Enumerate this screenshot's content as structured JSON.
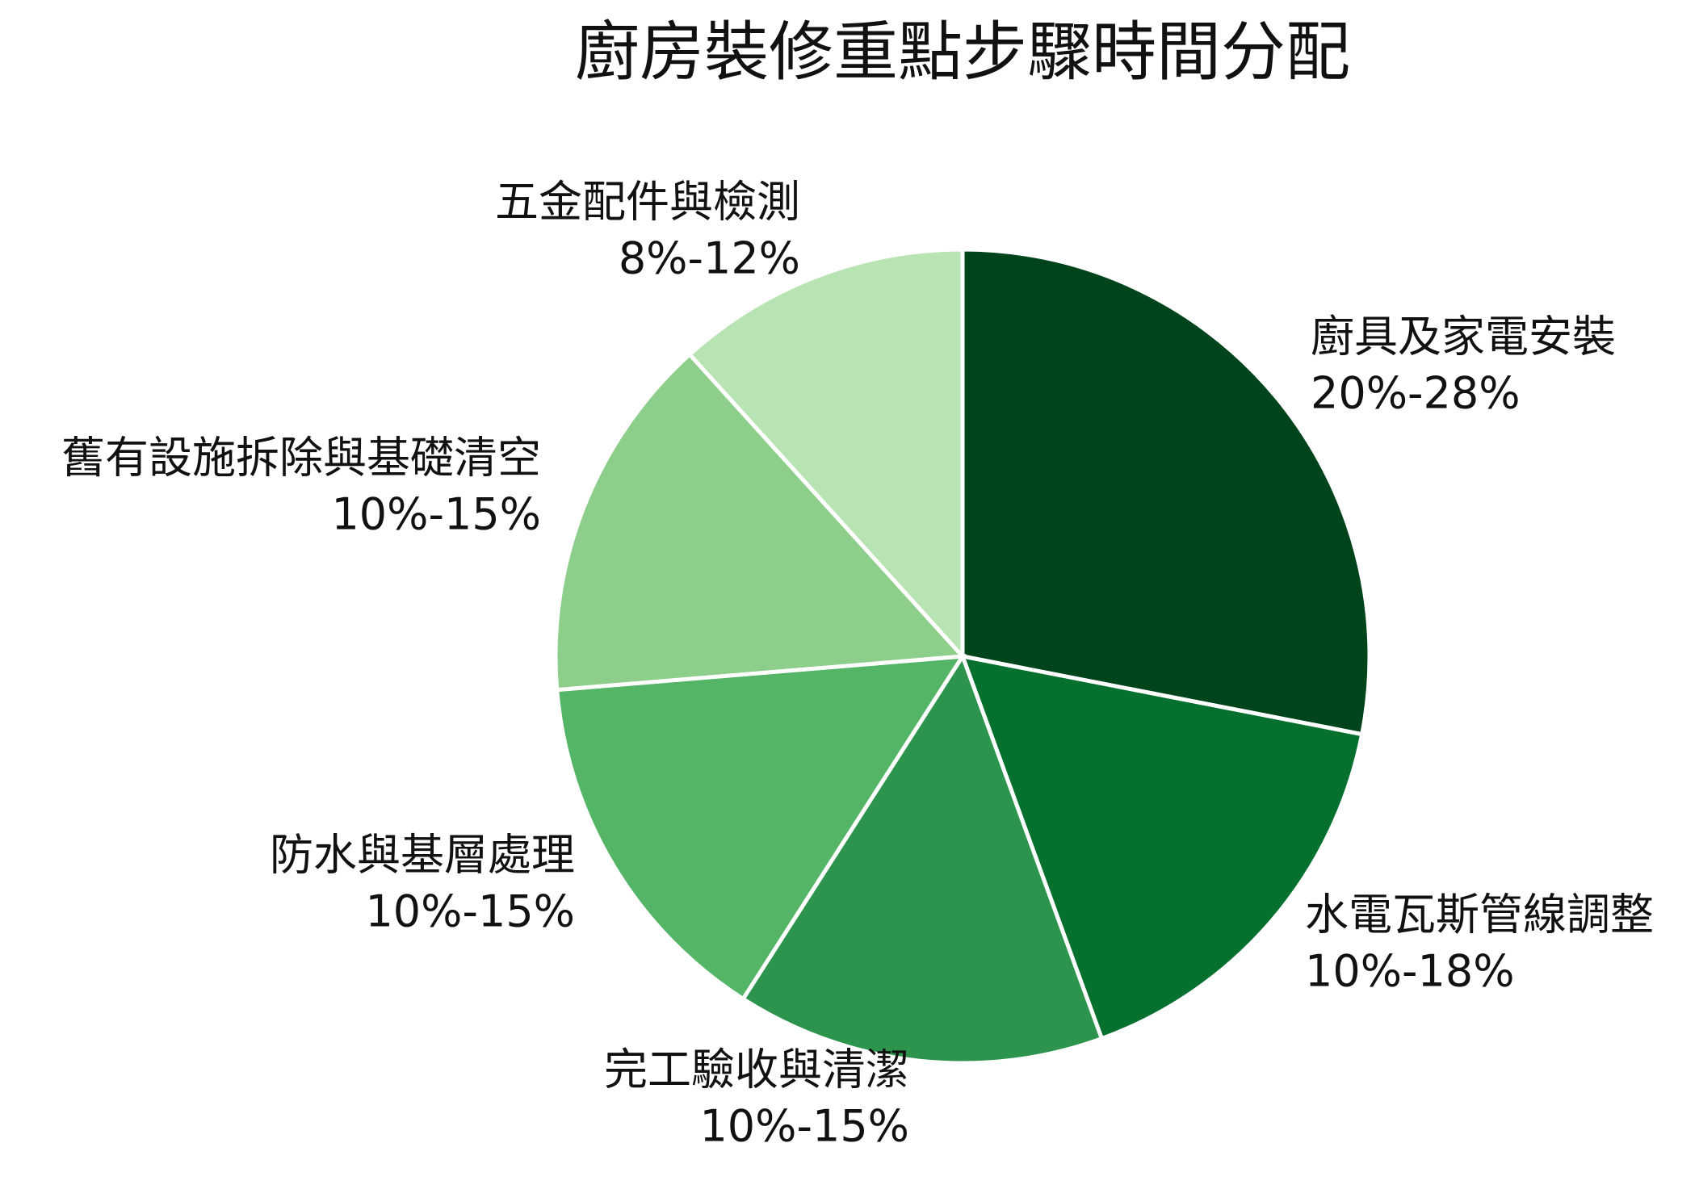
{
  "chart_data": {
    "type": "pie",
    "title": "廚房裝修重點步驟時間分配",
    "categories": [
      "廚具及家電安裝",
      "水電瓦斯管線調整",
      "完工驗收與清潔",
      "防水與基層處理",
      "舊有設施拆除與基礎清空",
      "五金配件與檢測"
    ],
    "low": [
      20,
      10,
      10,
      10,
      10,
      8
    ],
    "high": [
      28,
      18,
      15,
      15,
      15,
      12
    ],
    "value_labels": [
      "20%-28%",
      "10%-18%",
      "10%-15%",
      "10%-15%",
      "10%-15%",
      "8%-12%"
    ],
    "colors": [
      "#00441b",
      "#06702f",
      "#2c944c",
      "#55b567",
      "#8dcf8a",
      "#b8e3b2"
    ]
  }
}
